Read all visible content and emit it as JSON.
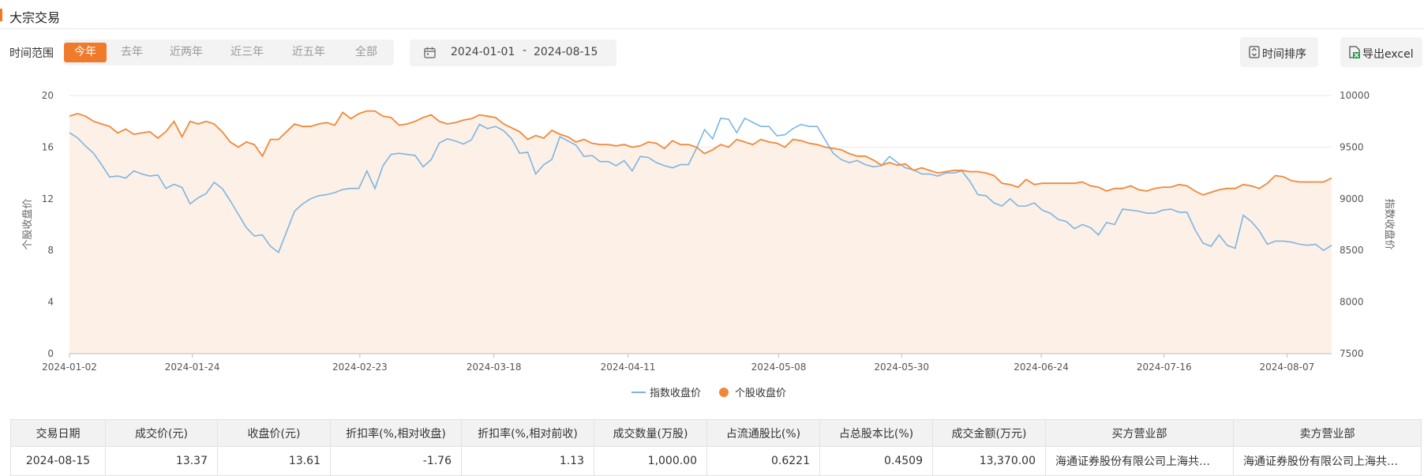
{
  "page": {
    "title": "大宗交易"
  },
  "filters": {
    "range_label": "时间范围",
    "ranges": [
      "今年",
      "去年",
      "近两年",
      "近三年",
      "近五年",
      "全部"
    ],
    "active_range": "今年",
    "date_from": "2024-01-01",
    "date_sep": "-",
    "date_to": "2024-08-15"
  },
  "toolbar": {
    "sort_label": "时间排序",
    "export_label": "导出excel"
  },
  "colors": {
    "accent": "#f07a2b",
    "index_line": "#7cb5e4",
    "stock_line": "#f0883a",
    "area_fill": "#fdf0e6"
  },
  "chart_data": {
    "type": "line",
    "x_start": "2024-01-02",
    "x_end": "2024-08-15",
    "x_ticks": [
      "2024-01-02",
      "2024-01-24",
      "2024-02-23",
      "2024-03-18",
      "2024-04-11",
      "2024-05-08",
      "2024-05-30",
      "2024-06-24",
      "2024-07-16",
      "2024-08-07"
    ],
    "y_left": {
      "label": "个股收盘价",
      "range": [
        0,
        20
      ],
      "ticks": [
        0,
        4,
        8,
        12,
        16,
        20
      ]
    },
    "y_right": {
      "label": "指数收盘价",
      "range": [
        7500,
        10000
      ],
      "ticks": [
        7500,
        8000,
        8500,
        9000,
        9500,
        10000
      ]
    },
    "grid": true,
    "legend_position": "bottom",
    "series": [
      {
        "name": "指数收盘价",
        "axis": "right",
        "values": [
          9640,
          9590,
          9510,
          9440,
          9330,
          9210,
          9220,
          9200,
          9270,
          9240,
          9220,
          9230,
          9100,
          9140,
          9110,
          8950,
          9010,
          9050,
          9160,
          9100,
          8980,
          8850,
          8720,
          8640,
          8650,
          8540,
          8480,
          8680,
          8880,
          8950,
          9000,
          9030,
          9040,
          9060,
          9090,
          9100,
          9100,
          9270,
          9100,
          9320,
          9430,
          9440,
          9430,
          9420,
          9310,
          9380,
          9540,
          9580,
          9560,
          9530,
          9570,
          9720,
          9680,
          9700,
          9660,
          9580,
          9440,
          9450,
          9240,
          9330,
          9380,
          9600,
          9560,
          9520,
          9410,
          9420,
          9360,
          9360,
          9320,
          9370,
          9270,
          9410,
          9400,
          9350,
          9320,
          9300,
          9330,
          9330,
          9490,
          9670,
          9580,
          9780,
          9770,
          9640,
          9780,
          9740,
          9700,
          9700,
          9610,
          9620,
          9680,
          9720,
          9700,
          9700,
          9570,
          9440,
          9380,
          9350,
          9370,
          9330,
          9310,
          9320,
          9410,
          9350,
          9300,
          9280,
          9240,
          9240,
          9220,
          9250,
          9250,
          9270,
          9170,
          9040,
          9030,
          8960,
          8930,
          9000,
          8930,
          8930,
          8960,
          8890,
          8860,
          8800,
          8780,
          8710,
          8750,
          8720,
          8650,
          8770,
          8750,
          8900,
          8890,
          8880,
          8860,
          8860,
          8890,
          8900,
          8870,
          8870,
          8700,
          8570,
          8540,
          8650,
          8550,
          8520,
          8840,
          8780,
          8690,
          8560,
          8590,
          8590,
          8580,
          8560,
          8550,
          8560,
          8500,
          8550
        ]
      },
      {
        "name": "个股收盘价",
        "axis": "left",
        "values": [
          18.4,
          18.6,
          18.4,
          18.0,
          17.8,
          17.6,
          17.1,
          17.4,
          17.0,
          17.1,
          17.2,
          16.7,
          17.2,
          18.0,
          16.8,
          18.0,
          17.8,
          18.0,
          17.8,
          17.2,
          16.4,
          16.0,
          16.4,
          16.2,
          15.3,
          16.6,
          16.6,
          17.2,
          17.8,
          17.6,
          17.6,
          17.8,
          17.9,
          17.7,
          18.7,
          18.2,
          18.6,
          18.8,
          18.8,
          18.4,
          18.3,
          17.7,
          17.8,
          18.0,
          18.3,
          18.5,
          18.0,
          17.8,
          17.9,
          18.1,
          18.2,
          18.5,
          18.4,
          18.3,
          17.8,
          17.5,
          17.2,
          16.6,
          16.9,
          16.7,
          17.3,
          17.0,
          16.8,
          16.4,
          16.6,
          16.3,
          16.2,
          16.2,
          16.1,
          16.2,
          16.0,
          16.1,
          16.4,
          16.3,
          15.9,
          16.5,
          16.2,
          16.2,
          16.0,
          15.5,
          15.8,
          16.2,
          16.0,
          16.6,
          16.4,
          16.2,
          16.6,
          16.4,
          16.3,
          16.0,
          16.6,
          16.5,
          16.3,
          16.2,
          16.0,
          15.9,
          15.8,
          15.5,
          15.3,
          15.3,
          15.0,
          14.6,
          14.8,
          14.6,
          14.7,
          14.2,
          14.4,
          14.2,
          14.0,
          14.1,
          14.2,
          14.2,
          14.1,
          14.1,
          14.0,
          13.8,
          13.2,
          13.1,
          12.9,
          13.5,
          13.1,
          13.2,
          13.2,
          13.2,
          13.2,
          13.2,
          13.3,
          13.0,
          12.9,
          12.6,
          12.8,
          12.8,
          13.0,
          12.7,
          12.6,
          12.8,
          12.9,
          12.9,
          13.1,
          13.0,
          12.6,
          12.3,
          12.5,
          12.7,
          12.8,
          12.8,
          13.1,
          13.0,
          12.8,
          13.2,
          13.8,
          13.7,
          13.4,
          13.3,
          13.3,
          13.3,
          13.3,
          13.61
        ]
      }
    ]
  },
  "table": {
    "headers": [
      "交易日期",
      "成交价(元)",
      "收盘价(元)",
      "折扣率(%,相对收盘)",
      "折扣率(%,相对前收)",
      "成交数量(万股)",
      "占流通股比(%)",
      "占总股本比(%)",
      "成交金额(万元)",
      "买方营业部",
      "卖方营业部"
    ],
    "rows": [
      [
        "2024-08-15",
        "13.37",
        "13.61",
        "-1.76",
        "1.13",
        "1,000.00",
        "0.6221",
        "0.4509",
        "13,370.00",
        "海通证券股份有限公司上海共…",
        "海通证券股份有限公司上海共…"
      ]
    ]
  }
}
